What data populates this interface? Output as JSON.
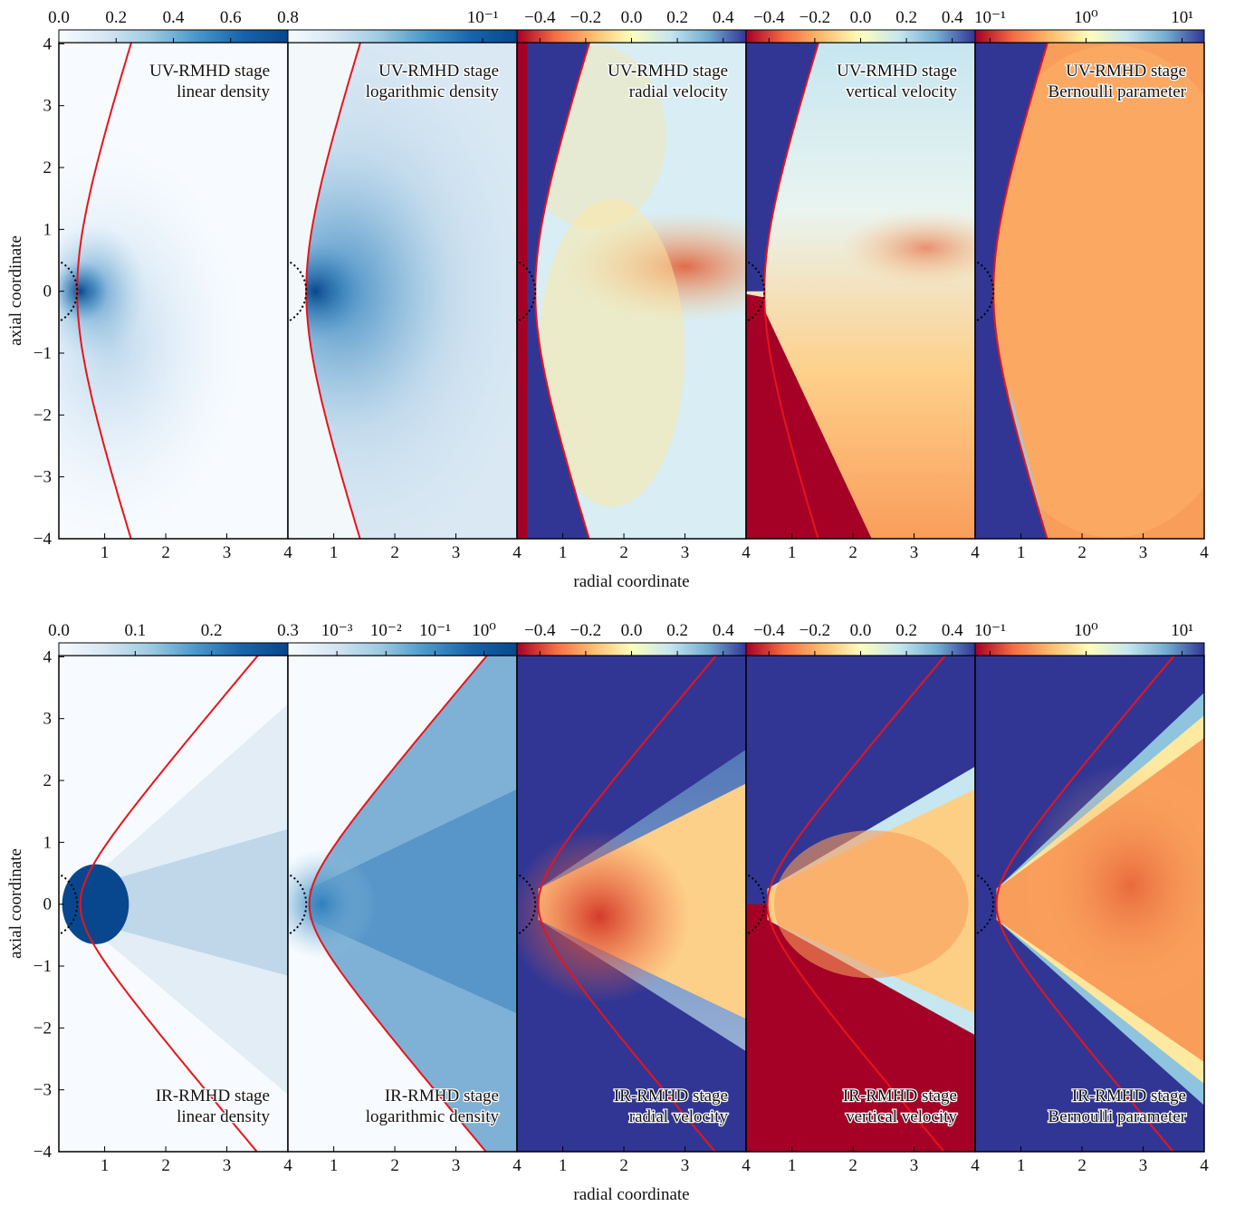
{
  "chart_data": [
    {
      "type": "heatmap",
      "title": "UV-RMHD stage",
      "subtitle": "linear density",
      "ylabel": "axial coordinate",
      "xlim": [
        0.25,
        4
      ],
      "ylim": [
        -4,
        4.02
      ],
      "xticks": [
        1,
        2,
        3,
        4
      ],
      "yticks": [
        {
          "value": -4,
          "label": "−4"
        },
        {
          "value": -3,
          "label": "−3"
        },
        {
          "value": -2,
          "label": "−2"
        },
        {
          "value": -1,
          "label": "−1"
        },
        0,
        1,
        2,
        3,
        4
      ],
      "colorbar": {
        "colormap": "Blues",
        "log": false,
        "lim": [
          0,
          0.8
        ],
        "ticks": [
          {
            "value": 0,
            "label": "0.0"
          },
          0.2,
          0.4,
          0.6,
          0.8
        ]
      }
    },
    {
      "type": "heatmap",
      "title": "UV-RMHD stage",
      "subtitle": "logarithmic density",
      "xlim": [
        0.25,
        4
      ],
      "ylim": [
        -4,
        4.02
      ],
      "xticks": [
        1,
        2,
        3,
        4
      ],
      "colorbar": {
        "colormap": "Blues",
        "log": true,
        "lim": [
          0.01,
          0.15
        ],
        "ticks": [
          {
            "value": 0.1,
            "label": "10⁻¹"
          }
        ]
      }
    },
    {
      "type": "heatmap",
      "title": "UV-RMHD stage",
      "subtitle": "radial velocity",
      "xlabel": "radial coordinate",
      "xlim": [
        0.25,
        4
      ],
      "ylim": [
        -4,
        4.02
      ],
      "xticks": [
        1,
        2,
        3,
        4
      ],
      "colorbar": {
        "colormap": "RdYlBu",
        "log": false,
        "lim": [
          -0.5,
          0.5
        ],
        "ticks": [
          {
            "value": -0.4,
            "label": "−0.4"
          },
          {
            "value": -0.2,
            "label": "−0.2"
          },
          {
            "value": 0,
            "label": "0.0"
          },
          0.2,
          0.4
        ]
      }
    },
    {
      "type": "heatmap",
      "title": "UV-RMHD stage",
      "subtitle": "vertical velocity",
      "xlim": [
        0.25,
        4
      ],
      "ylim": [
        -4,
        4.02
      ],
      "xticks": [
        1,
        2,
        3,
        4
      ],
      "colorbar": {
        "colormap": "RdYlBu",
        "log": false,
        "lim": [
          -0.5,
          0.5
        ],
        "ticks": [
          {
            "value": -0.4,
            "label": "−0.4"
          },
          {
            "value": -0.2,
            "label": "−0.2"
          },
          {
            "value": 0,
            "label": "0.0"
          },
          0.2,
          0.4
        ]
      }
    },
    {
      "type": "heatmap",
      "title": "UV-RMHD stage",
      "subtitle": "Bernoulli parameter",
      "xlim": [
        0.25,
        4
      ],
      "ylim": [
        -4,
        4.02
      ],
      "xticks": [
        1,
        2,
        3,
        4
      ],
      "colorbar": {
        "colormap": "RdYlBu",
        "log": true,
        "lim": [
          0.07,
          17
        ],
        "ticks": [
          {
            "value": 0.1,
            "label": "10⁻¹"
          },
          {
            "value": 1,
            "label": "10⁰"
          },
          {
            "value": 10,
            "label": "10¹"
          }
        ]
      }
    },
    {
      "type": "heatmap",
      "title": "IR-RMHD stage",
      "subtitle": "linear density",
      "ylabel": "axial coordinate",
      "xlim": [
        0.25,
        4
      ],
      "ylim": [
        -4,
        4.02
      ],
      "xticks": [
        1,
        2,
        3,
        4
      ],
      "yticks": [
        {
          "value": -4,
          "label": "−4"
        },
        {
          "value": -3,
          "label": "−3"
        },
        {
          "value": -2,
          "label": "−2"
        },
        {
          "value": -1,
          "label": "−1"
        },
        0,
        1,
        2,
        3,
        4
      ],
      "colorbar": {
        "colormap": "Blues",
        "log": false,
        "lim": [
          0,
          0.3
        ],
        "ticks": [
          {
            "value": 0,
            "label": "0.0"
          },
          0.1,
          0.2,
          0.3
        ]
      }
    },
    {
      "type": "heatmap",
      "title": "IR-RMHD stage",
      "subtitle": "logarithmic density",
      "xlim": [
        0.25,
        4
      ],
      "ylim": [
        -4,
        4.02
      ],
      "xticks": [
        1,
        2,
        3,
        4
      ],
      "colorbar": {
        "colormap": "Blues",
        "log": true,
        "lim": [
          0.0001,
          4.7
        ],
        "ticks": [
          {
            "value": 0.001,
            "label": "10⁻³"
          },
          {
            "value": 0.01,
            "label": "10⁻²"
          },
          {
            "value": 0.1,
            "label": "10⁻¹"
          },
          {
            "value": 1,
            "label": "10⁰"
          }
        ]
      }
    },
    {
      "type": "heatmap",
      "title": "IR-RMHD stage",
      "subtitle": "radial velocity",
      "xlabel": "radial coordinate",
      "xlim": [
        0.25,
        4
      ],
      "ylim": [
        -4,
        4.02
      ],
      "xticks": [
        1,
        2,
        3,
        4
      ],
      "colorbar": {
        "colormap": "RdYlBu",
        "log": false,
        "lim": [
          -0.5,
          0.5
        ],
        "ticks": [
          {
            "value": -0.4,
            "label": "−0.4"
          },
          {
            "value": -0.2,
            "label": "−0.2"
          },
          {
            "value": 0,
            "label": "0.0"
          },
          0.2,
          0.4
        ]
      }
    },
    {
      "type": "heatmap",
      "title": "IR-RMHD stage",
      "subtitle": "vertical velocity",
      "xlim": [
        0.25,
        4
      ],
      "ylim": [
        -4,
        4.02
      ],
      "xticks": [
        1,
        2,
        3,
        4
      ],
      "colorbar": {
        "colormap": "RdYlBu",
        "log": false,
        "lim": [
          -0.5,
          0.5
        ],
        "ticks": [
          {
            "value": -0.4,
            "label": "−0.4"
          },
          {
            "value": -0.2,
            "label": "−0.2"
          },
          {
            "value": 0,
            "label": "0.0"
          },
          0.2,
          0.4
        ]
      }
    },
    {
      "type": "heatmap",
      "title": "IR-RMHD stage",
      "subtitle": "Bernoulli parameter",
      "xlim": [
        0.25,
        4
      ],
      "ylim": [
        -4,
        4.02
      ],
      "xticks": [
        1,
        2,
        3,
        4
      ],
      "colorbar": {
        "colormap": "RdYlBu",
        "log": true,
        "lim": [
          0.07,
          17
        ],
        "ticks": [
          {
            "value": 0.1,
            "label": "10⁻¹"
          },
          {
            "value": 1,
            "label": "10⁰"
          },
          {
            "value": 10,
            "label": "10¹"
          }
        ]
      }
    }
  ]
}
